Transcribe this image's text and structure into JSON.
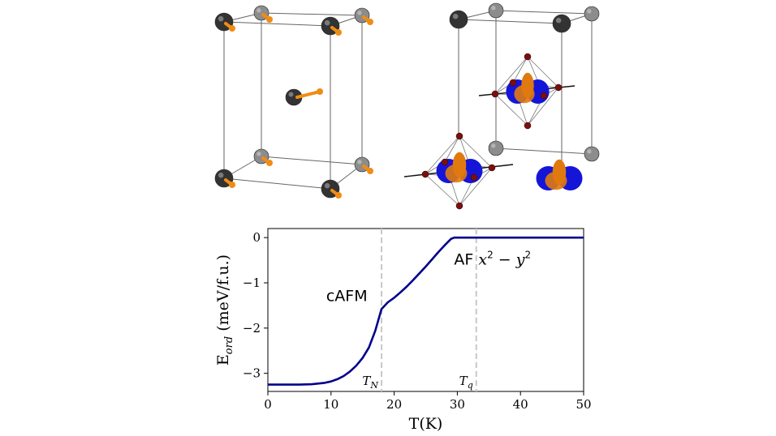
{
  "colors": {
    "curve": "#00008B",
    "marker_line": "#c8c8c8",
    "atom_dark": "#333333",
    "atom_light": "#8c8c8c",
    "spin_arrow": "#f08c14",
    "orbital_blue": "#1515d8",
    "orbital_orange": "#e07a10",
    "oxygen": "#7a0f0f",
    "cell_edge": "#555555"
  },
  "icons": {
    "left_panel": "crystal-cell-spins-icon",
    "right_panel": "crystal-cell-orbitals-icon"
  },
  "chart_data": {
    "type": "line",
    "xlabel": "T(K)",
    "ylabel": "E_ord (meV/f.u.)",
    "xlim": [
      0,
      50
    ],
    "ylim": [
      -3.4,
      0.2
    ],
    "x_ticks": [
      0,
      10,
      20,
      30,
      40,
      50
    ],
    "y_ticks": [
      0,
      -1,
      -2,
      -3
    ],
    "grid": false,
    "series": [
      {
        "x": [
          0,
          5,
          7,
          9,
          10,
          11,
          12,
          13,
          14,
          15,
          16,
          17,
          18,
          19,
          20,
          21,
          22,
          23,
          24,
          25,
          26,
          27,
          28,
          29,
          29.5,
          30,
          35,
          40,
          45,
          50
        ],
        "y": [
          -3.25,
          -3.25,
          -3.24,
          -3.21,
          -3.18,
          -3.13,
          -3.06,
          -2.96,
          -2.83,
          -2.66,
          -2.43,
          -2.06,
          -1.58,
          -1.43,
          -1.33,
          -1.21,
          -1.08,
          -0.94,
          -0.79,
          -0.64,
          -0.48,
          -0.32,
          -0.17,
          -0.03,
          0,
          0,
          0,
          0,
          0,
          0
        ]
      }
    ],
    "markers": [
      {
        "x": 18,
        "label_main": "T",
        "label_sub": "N"
      },
      {
        "x": 33,
        "label_main": "T",
        "label_sub": "q"
      }
    ],
    "annotations": [
      {
        "text": "cAFM",
        "x": 12.5,
        "y": -1.4
      },
      {
        "text_prefix": "AF",
        "text_math_base": "x",
        "text_math_rest": "2 − y",
        "text_math_sup": "2",
        "x": 30,
        "y": -0.6
      }
    ]
  }
}
